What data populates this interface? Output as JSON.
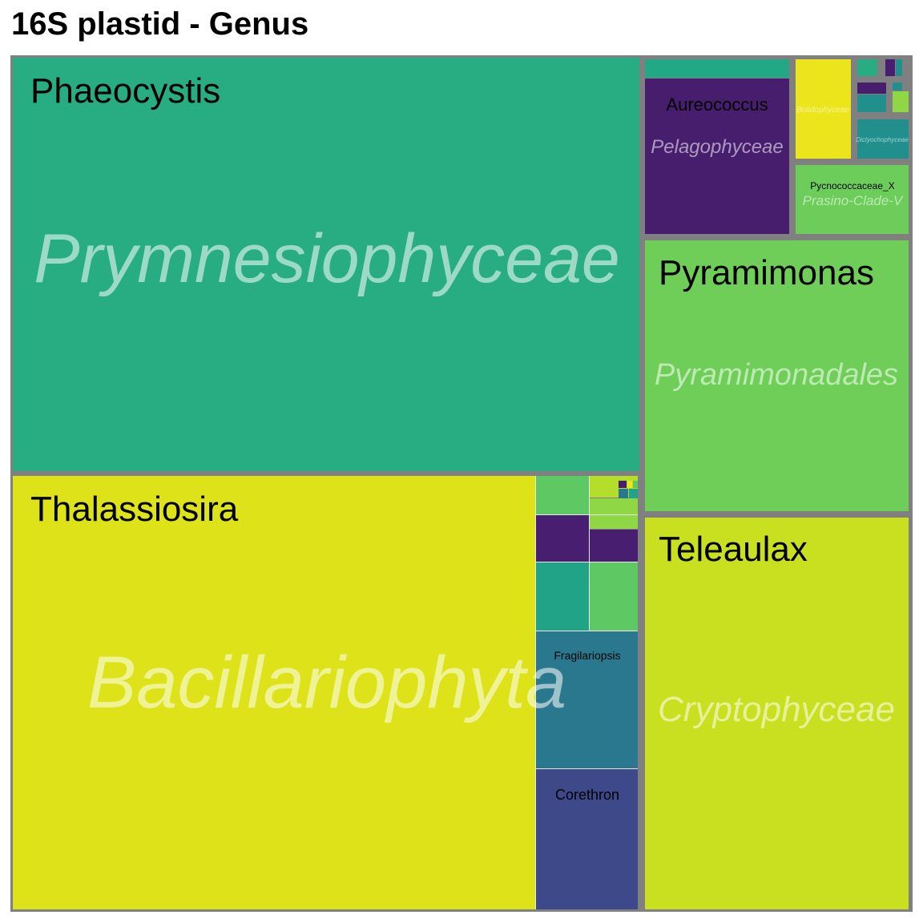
{
  "chart_data": {
    "type": "treemap",
    "title": "16S plastid - Genus",
    "groups": [
      {
        "name": "Prymnesiophyceae",
        "genera": [
          {
            "name": "Phaeocystis",
            "color": "#27ad81"
          }
        ]
      },
      {
        "name": "Bacillariophyta",
        "genera": [
          {
            "name": "Thalassiosira",
            "color": "#dde318"
          },
          {
            "name": "Fragilariopsis",
            "color": "#2a788e"
          },
          {
            "name": "Corethron",
            "color": "#3e4989"
          },
          {
            "name": "",
            "color": "#5ec962"
          },
          {
            "name": "",
            "color": "#8fd744"
          },
          {
            "name": "",
            "color": "#481f70"
          },
          {
            "name": "",
            "color": "#481f70"
          },
          {
            "name": "",
            "color": "#20a386"
          },
          {
            "name": "",
            "color": "#5ec962"
          }
        ]
      },
      {
        "name": "Pelagophyceae",
        "genera": [
          {
            "name": "Aureococcus",
            "color": "#471e6e"
          },
          {
            "name": "",
            "color": "#22a884"
          }
        ]
      },
      {
        "name": "Bolidophyceae",
        "genera": [
          {
            "name": "",
            "color": "#ece51b"
          }
        ]
      },
      {
        "name": "Dictyochophyceae",
        "genera": [
          {
            "name": "",
            "color": "#21908d"
          }
        ]
      },
      {
        "name": "Prasino-Clade-V",
        "genera": [
          {
            "name": "Pycnococcaceae_X",
            "color": "#6ccd5a"
          }
        ]
      },
      {
        "name": "Pyramimonadales",
        "genera": [
          {
            "name": "Pyramimonas",
            "color": "#6ece58"
          }
        ]
      },
      {
        "name": "Cryptophyceae",
        "genera": [
          {
            "name": "Teleaulax",
            "color": "#c8e020"
          }
        ]
      }
    ],
    "border_color": "#808080"
  }
}
